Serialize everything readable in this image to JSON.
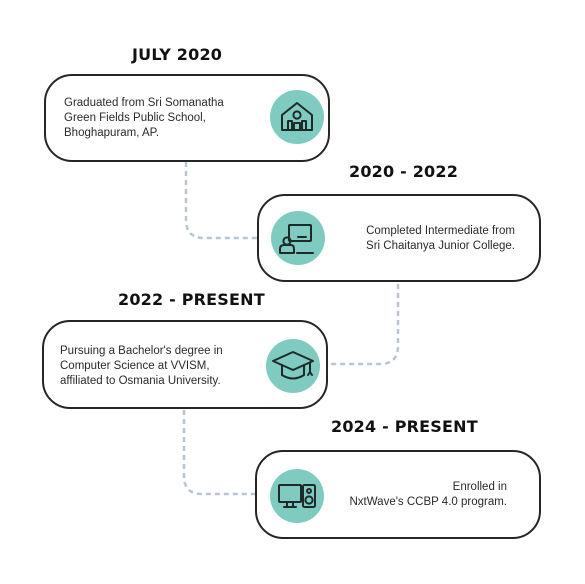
{
  "theme": {
    "accent": "#80cbc0",
    "border": "#262626",
    "connector": "#b7c6d1"
  },
  "timeline": [
    {
      "period": "JULY 2020",
      "description": "Graduated from Sri Somanatha\nGreen Fields Public School,\nBhoghapuram, AP.",
      "icon": "school-building-icon"
    },
    {
      "period": "2020 - 2022",
      "description": "Completed Intermediate from\nSri Chaitanya Junior College.",
      "icon": "teacher-board-icon"
    },
    {
      "period": "2022 - PRESENT",
      "description": "Pursuing a Bachelor's degree in\nComputer Science at VVISM,\naffiliated to Osmania University.",
      "icon": "graduation-cap-icon"
    },
    {
      "period": "2024 - PRESENT",
      "description": "Enrolled in\nNxtWave's CCBP 4.0 program.",
      "icon": "computer-speaker-icon"
    }
  ]
}
